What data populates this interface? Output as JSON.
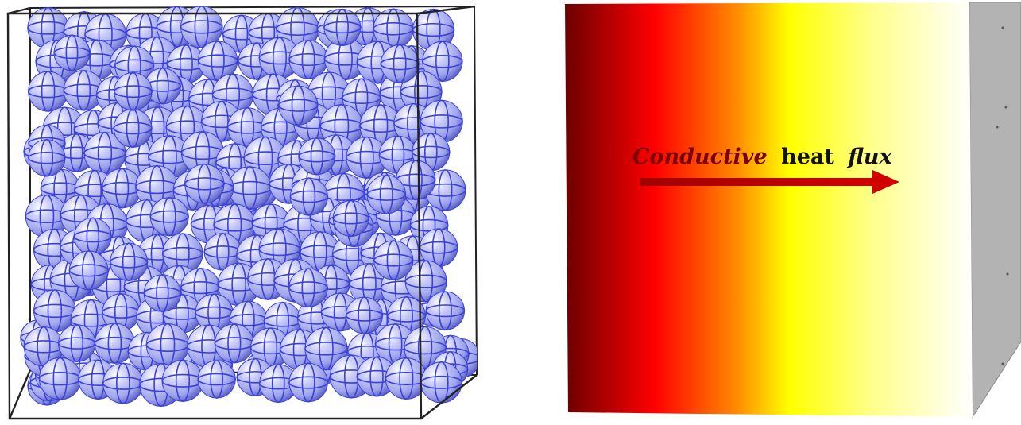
{
  "left_panel": {},
  "right_panel": {
    "label_italic_1": "Conductive",
    "label_regular": "heat",
    "label_italic_2": "flux",
    "colors": {
      "hot": "#6b0000",
      "red": "#ff0000",
      "yellow": "#ffff00",
      "cold": "#ffffff",
      "side_face": "#b3b3b3",
      "arrow": "#c00000"
    }
  },
  "colors": {
    "sphere_fill": "#a8aef0",
    "sphere_line": "#3b41d8",
    "frame": "#222222"
  }
}
